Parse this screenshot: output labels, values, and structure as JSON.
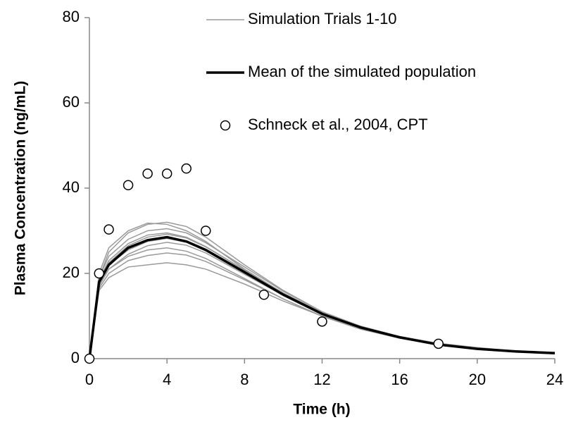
{
  "chart_data": {
    "type": "line",
    "xlabel": "Time (h)",
    "ylabel": "Plasma  Concentration (ng/mL)",
    "x": [
      0,
      0.5,
      1,
      2,
      3,
      4,
      5,
      6,
      8,
      10,
      12,
      14,
      16,
      18,
      20,
      22,
      24
    ],
    "series": [
      {
        "name": "Simulation Trials 1-10",
        "color": "#9a9a9a",
        "values": [
          [
            0,
            19,
            25,
            29.5,
            31.5,
            32,
            31,
            28.5,
            22,
            16,
            11,
            7.5,
            5,
            3.3,
            2.2,
            1.6,
            1.2
          ],
          [
            0,
            20,
            26,
            30,
            31.8,
            31.5,
            30,
            27.5,
            21,
            15.3,
            10.6,
            7.2,
            4.9,
            3.3,
            2.2,
            1.5,
            1.1
          ],
          [
            0,
            17,
            21,
            24.5,
            26.5,
            27.3,
            26.6,
            24.8,
            19.8,
            14.8,
            10.4,
            7.3,
            5,
            3.4,
            2.4,
            1.7,
            1.3
          ],
          [
            0,
            16,
            19,
            21.5,
            22,
            22.5,
            22,
            21,
            17.5,
            13.5,
            10,
            7.3,
            5.2,
            3.6,
            2.6,
            1.8,
            1.3
          ],
          [
            0,
            18,
            22,
            25.5,
            27.5,
            28.2,
            27.3,
            25.3,
            20,
            14.8,
            10.4,
            7.2,
            5,
            3.4,
            2.3,
            1.6,
            1.2
          ],
          [
            0,
            18.5,
            23,
            27,
            29,
            29.5,
            28.5,
            26.3,
            20.8,
            15.4,
            10.8,
            7.5,
            5.1,
            3.5,
            2.4,
            1.7,
            1.2
          ],
          [
            0,
            17.5,
            21,
            24,
            25.5,
            26,
            25.2,
            23.5,
            18.8,
            14,
            9.9,
            6.9,
            4.8,
            3.3,
            2.3,
            1.6,
            1.2
          ],
          [
            0,
            19,
            24,
            28,
            30,
            30.5,
            29.5,
            27.2,
            21.5,
            15.8,
            11,
            7.6,
            5.2,
            3.5,
            2.4,
            1.7,
            1.2
          ],
          [
            0,
            16.5,
            20,
            23,
            24.2,
            24.8,
            24.3,
            22.8,
            18.5,
            14,
            10,
            7,
            5,
            3.4,
            2.4,
            1.7,
            1.3
          ],
          [
            0,
            18,
            22.5,
            26.5,
            28.5,
            29.2,
            28.3,
            26.2,
            20.8,
            15.3,
            10.7,
            7.4,
            5.1,
            3.5,
            2.4,
            1.7,
            1.2
          ]
        ]
      },
      {
        "name": "Mean of the simulated population",
        "color": "#000000",
        "values": [
          0,
          18,
          22,
          26,
          27.8,
          28.5,
          27.5,
          25.5,
          20.3,
          15,
          10.5,
          7.3,
          5,
          3.3,
          2.3,
          1.7,
          1.3
        ]
      },
      {
        "name": "Schneck et al., 2004, CPT",
        "color": "#000000",
        "marker": "circle",
        "x": [
          0,
          0.5,
          1,
          2,
          3,
          4,
          5,
          6,
          9,
          12,
          18
        ],
        "values": [
          0,
          20,
          30.3,
          40.7,
          43.4,
          43.4,
          44.6,
          30,
          15,
          8.7,
          3.5
        ]
      }
    ],
    "xlim": [
      0,
      24
    ],
    "xticks": [
      0,
      4,
      8,
      12,
      16,
      20,
      24
    ],
    "ylim": [
      0,
      80
    ],
    "yticks": [
      0,
      20,
      40,
      60,
      80
    ],
    "grid": false,
    "legend": "upper center"
  }
}
